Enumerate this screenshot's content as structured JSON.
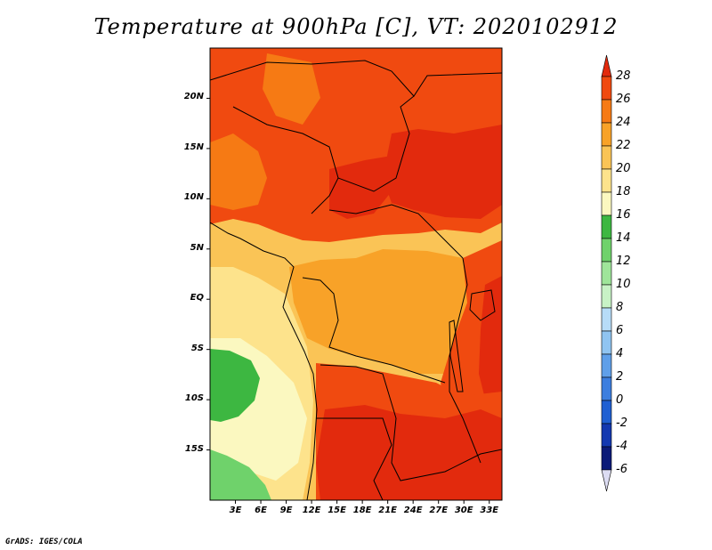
{
  "title": "Temperature at 900hPa [C], VT: 2020102912",
  "credit": "GrADS: IGES/COLA",
  "map": {
    "lon_range": [
      0,
      34.5
    ],
    "lat_range": [
      -20,
      25
    ],
    "lat_ticks": [
      {
        "value": 20,
        "label": "20N"
      },
      {
        "value": 15,
        "label": "15N"
      },
      {
        "value": 10,
        "label": "10N"
      },
      {
        "value": 5,
        "label": "5N"
      },
      {
        "value": 0,
        "label": "EQ"
      },
      {
        "value": -5,
        "label": "5S"
      },
      {
        "value": -10,
        "label": "10S"
      },
      {
        "value": -15,
        "label": "15S"
      }
    ],
    "lon_ticks": [
      {
        "value": 3,
        "label": "3E"
      },
      {
        "value": 6,
        "label": "6E"
      },
      {
        "value": 9,
        "label": "9E"
      },
      {
        "value": 12,
        "label": "12E"
      },
      {
        "value": 15,
        "label": "15E"
      },
      {
        "value": 18,
        "label": "18E"
      },
      {
        "value": 21,
        "label": "21E"
      },
      {
        "value": 24,
        "label": "24E"
      },
      {
        "value": 27,
        "label": "27E"
      },
      {
        "value": 30,
        "label": "30E"
      },
      {
        "value": 33,
        "label": "33E"
      }
    ]
  },
  "colorbar": {
    "levels": [
      "28",
      "26",
      "24",
      "22",
      "20",
      "18",
      "16",
      "14",
      "12",
      "10",
      "8",
      "6",
      "4",
      "2",
      "0",
      "-2",
      "-4",
      "-6"
    ],
    "colors": [
      "#e22a0d",
      "#f04a10",
      "#f67a14",
      "#f8a228",
      "#fac456",
      "#fde38c",
      "#fbf8c0",
      "#3db741",
      "#6fd26b",
      "#9fe59a",
      "#c8f2c6",
      "#b7dcf8",
      "#90c4f1",
      "#5f9fe9",
      "#3c7edf",
      "#1f5fd2",
      "#1338b0",
      "#0b1a78",
      "#dcdcf2"
    ]
  }
}
